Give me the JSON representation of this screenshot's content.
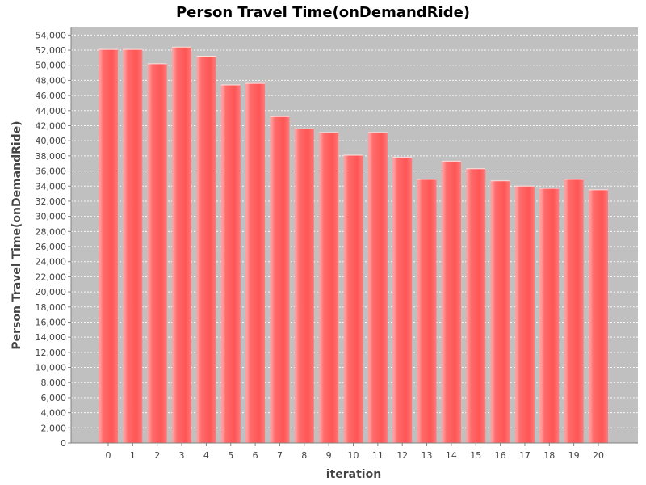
{
  "chart_data": {
    "type": "bar",
    "title": "Person Travel Time(onDemandRide)",
    "xlabel": "iteration",
    "ylabel": "Person Travel Time(onDemandRide)",
    "categories": [
      "0",
      "1",
      "2",
      "3",
      "4",
      "5",
      "6",
      "7",
      "8",
      "9",
      "10",
      "11",
      "12",
      "13",
      "14",
      "15",
      "16",
      "17",
      "18",
      "19",
      "20"
    ],
    "values": [
      52100,
      52100,
      50200,
      52400,
      51200,
      47400,
      47600,
      43200,
      41600,
      41100,
      38100,
      41100,
      37800,
      34900,
      37300,
      36300,
      34700,
      34000,
      33700,
      34900,
      33500
    ],
    "ylim": [
      0,
      55000
    ],
    "yticks": [
      0,
      2000,
      4000,
      6000,
      8000,
      10000,
      12000,
      14000,
      16000,
      18000,
      20000,
      22000,
      24000,
      26000,
      28000,
      30000,
      32000,
      34000,
      36000,
      38000,
      40000,
      42000,
      44000,
      46000,
      48000,
      50000,
      52000,
      54000
    ],
    "grid": true,
    "colors": {
      "bar": "#ff5555",
      "bar_highlight": "#ff9999",
      "plot_background": "#c0c0c0",
      "grid": "#ffffff"
    }
  }
}
